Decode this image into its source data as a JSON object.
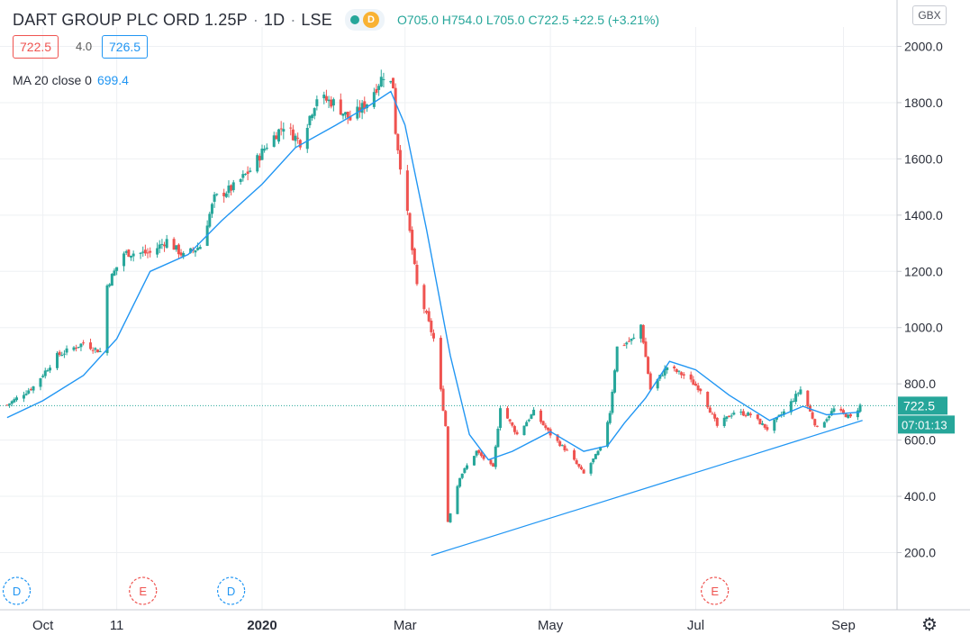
{
  "header": {
    "symbol": "DART GROUP PLC ORD 1.25P",
    "interval": "1D",
    "exchange": "LSE",
    "badge": "D",
    "ohlc": {
      "o": "O705.0",
      "h": "H754.0",
      "l": "L705.0",
      "c": "C722.5",
      "chg": "+22.5 (+3.21%)"
    }
  },
  "quote": {
    "bid": "722.5",
    "spread": "4.0",
    "ask": "726.5"
  },
  "indicator": {
    "label": "MA 20 close 0",
    "value": "699.4"
  },
  "currency": "GBX",
  "price_label": "722.5",
  "countdown": "07:01:13",
  "colors": {
    "up": "#26a69a",
    "down": "#ef5350",
    "ma": "#2196f3",
    "accent": "#2196f3"
  },
  "icons": {
    "settings": "gear-icon"
  },
  "chart_data": {
    "type": "candlestick",
    "y_ticks": [
      "2000.0",
      "1800.0",
      "1600.0",
      "1400.0",
      "1200.0",
      "1000.0",
      "800.0",
      "600.0",
      "400.0",
      "200.0"
    ],
    "ylim": [
      100,
      2100
    ],
    "x_ticks": [
      "Oct",
      "11",
      "2020",
      "Mar",
      "May",
      "Jul",
      "Sep"
    ],
    "events": [
      {
        "type": "D",
        "date": "2019-09-20"
      },
      {
        "type": "E",
        "date": "2019-11-12"
      },
      {
        "type": "D",
        "date": "2019-12-19"
      },
      {
        "type": "E",
        "date": "2020-07-09"
      }
    ],
    "close_path": [
      [
        "2019-09-16",
        725
      ],
      [
        "2019-09-27",
        790
      ],
      [
        "2019-10-07",
        900
      ],
      [
        "2019-10-18",
        945
      ],
      [
        "2019-10-25",
        915
      ],
      [
        "2019-10-28",
        1150
      ],
      [
        "2019-11-04",
        1265
      ],
      [
        "2019-11-15",
        1265
      ],
      [
        "2019-11-22",
        1310
      ],
      [
        "2019-11-29",
        1255
      ],
      [
        "2019-12-06",
        1290
      ],
      [
        "2019-12-12",
        1460
      ],
      [
        "2019-12-20",
        1500
      ],
      [
        "2019-12-27",
        1560
      ],
      [
        "2020-01-03",
        1650
      ],
      [
        "2020-01-10",
        1720
      ],
      [
        "2020-01-17",
        1660
      ],
      [
        "2020-01-24",
        1820
      ],
      [
        "2020-01-31",
        1800
      ],
      [
        "2020-02-07",
        1740
      ],
      [
        "2020-02-14",
        1800
      ],
      [
        "2020-02-21",
        1900
      ],
      [
        "2020-02-25",
        1860
      ],
      [
        "2020-02-26",
        1700
      ],
      [
        "2020-03-02",
        1400
      ],
      [
        "2020-03-06",
        1150
      ],
      [
        "2020-03-13",
        960
      ],
      [
        "2020-03-18",
        650
      ],
      [
        "2020-03-19",
        310
      ],
      [
        "2020-03-24",
        470
      ],
      [
        "2020-03-31",
        560
      ],
      [
        "2020-04-07",
        500
      ],
      [
        "2020-04-10",
        720
      ],
      [
        "2020-04-17",
        620
      ],
      [
        "2020-04-24",
        700
      ],
      [
        "2020-05-01",
        620
      ],
      [
        "2020-05-08",
        560
      ],
      [
        "2020-05-15",
        480
      ],
      [
        "2020-05-22",
        570
      ],
      [
        "2020-05-26",
        700
      ],
      [
        "2020-05-29",
        930
      ],
      [
        "2020-06-05",
        960
      ],
      [
        "2020-06-08",
        1010
      ],
      [
        "2020-06-12",
        780
      ],
      [
        "2020-06-19",
        860
      ],
      [
        "2020-06-26",
        830
      ],
      [
        "2020-07-03",
        780
      ],
      [
        "2020-07-10",
        650
      ],
      [
        "2020-07-17",
        700
      ],
      [
        "2020-07-24",
        690
      ],
      [
        "2020-07-31",
        640
      ],
      [
        "2020-08-07",
        700
      ],
      [
        "2020-08-14",
        780
      ],
      [
        "2020-08-21",
        640
      ],
      [
        "2020-08-28",
        710
      ],
      [
        "2020-09-04",
        680
      ],
      [
        "2020-09-08",
        722.5
      ]
    ],
    "ma20_path": [
      [
        "2019-09-16",
        680
      ],
      [
        "2019-10-01",
        740
      ],
      [
        "2019-10-18",
        830
      ],
      [
        "2019-11-01",
        960
      ],
      [
        "2019-11-15",
        1200
      ],
      [
        "2019-12-01",
        1260
      ],
      [
        "2019-12-15",
        1380
      ],
      [
        "2020-01-01",
        1510
      ],
      [
        "2020-01-15",
        1640
      ],
      [
        "2020-02-01",
        1720
      ],
      [
        "2020-02-15",
        1790
      ],
      [
        "2020-02-24",
        1840
      ],
      [
        "2020-03-01",
        1720
      ],
      [
        "2020-03-10",
        1350
      ],
      [
        "2020-03-20",
        900
      ],
      [
        "2020-03-28",
        620
      ],
      [
        "2020-04-05",
        530
      ],
      [
        "2020-04-15",
        560
      ],
      [
        "2020-05-01",
        630
      ],
      [
        "2020-05-15",
        560
      ],
      [
        "2020-05-25",
        580
      ],
      [
        "2020-06-01",
        660
      ],
      [
        "2020-06-10",
        750
      ],
      [
        "2020-06-20",
        880
      ],
      [
        "2020-07-01",
        850
      ],
      [
        "2020-07-15",
        760
      ],
      [
        "2020-08-01",
        670
      ],
      [
        "2020-08-15",
        720
      ],
      [
        "2020-08-25",
        690
      ],
      [
        "2020-09-08",
        699.4
      ]
    ],
    "trendline": [
      [
        "2020-03-12",
        190
      ],
      [
        "2020-09-09",
        670
      ]
    ],
    "current_price": 722.5
  }
}
